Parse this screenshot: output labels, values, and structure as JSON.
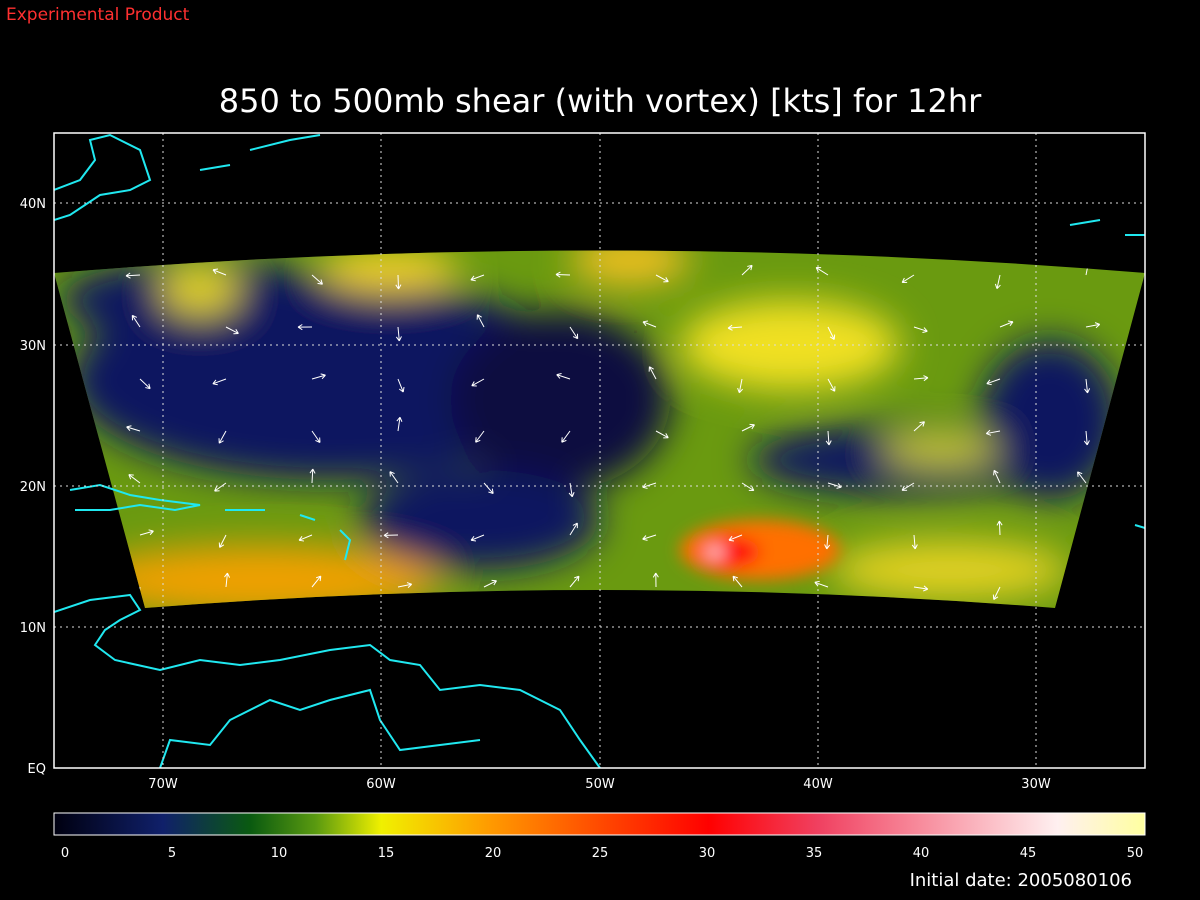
{
  "header": {
    "label": "Experimental Product",
    "title": "850 to 500mb shear (with vortex) [kts] for 12hr"
  },
  "map": {
    "lat_labels": [
      "40N",
      "30N",
      "20N",
      "10N",
      "EQ"
    ],
    "lon_labels": [
      "70W",
      "60W",
      "50W",
      "40W",
      "30W"
    ]
  },
  "colorbar": {
    "ticks": [
      0,
      5,
      10,
      15,
      20,
      25,
      30,
      35,
      40,
      45,
      50
    ]
  },
  "footer": {
    "initial_date": "Initial date: 2005080106"
  }
}
